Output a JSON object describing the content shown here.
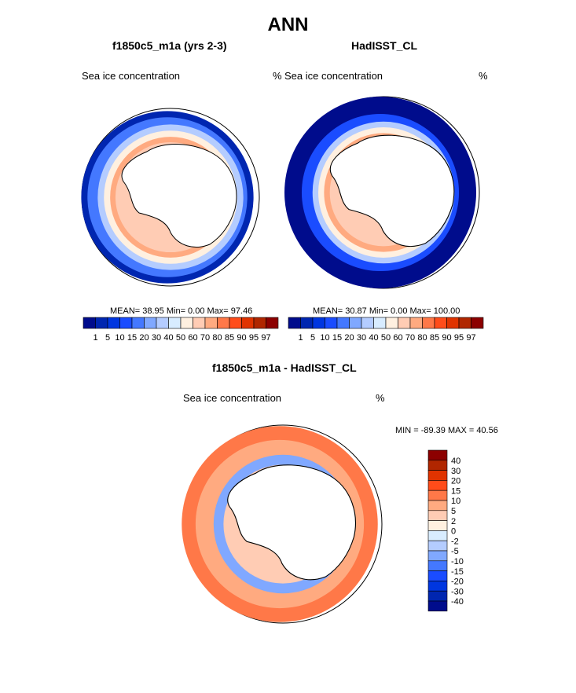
{
  "title": "ANN",
  "panels": [
    {
      "title": "f1850c5_m1a (yrs 2-3)",
      "left_label": "Sea ice concentration",
      "units": "%",
      "stats": "MEAN=  38.95  Min=   0.00  Max=  97.46"
    },
    {
      "title": "HadISST_CL",
      "left_label": "Sea ice concentration",
      "units": "%",
      "stats": "MEAN=  30.87  Min=   0.00  Max= 100.00"
    },
    {
      "title": "f1850c5_m1a - HadISST_CL",
      "left_label": "Sea ice concentration",
      "units": "%",
      "stats": "MIN = -89.39 MAX =  40.56"
    }
  ],
  "colorbar_abs": {
    "labels": [
      "1",
      "5",
      "10",
      "15",
      "20",
      "30",
      "40",
      "50",
      "60",
      "70",
      "80",
      "85",
      "90",
      "95",
      "97"
    ],
    "colors": [
      "#000c8c",
      "#0026b0",
      "#0036e0",
      "#1a4cff",
      "#4478ff",
      "#80a8ff",
      "#b4ccff",
      "#d8ecff",
      "#fff0e0",
      "#ffccb4",
      "#ffaa80",
      "#ff7848",
      "#ff4c1a",
      "#e03300",
      "#b02600",
      "#8c0000"
    ]
  },
  "colorbar_diff": {
    "labels": [
      "40",
      "30",
      "20",
      "15",
      "10",
      "5",
      "2",
      "0",
      "-2",
      "-5",
      "-10",
      "-15",
      "-20",
      "-30",
      "-40"
    ],
    "colors": [
      "#8c0000",
      "#b02600",
      "#e03300",
      "#ff4c1a",
      "#ff7848",
      "#ffaa80",
      "#ffccb4",
      "#fff0e0",
      "#d8ecff",
      "#b4ccff",
      "#80a8ff",
      "#4478ff",
      "#1a4cff",
      "#0036e0",
      "#0026b0",
      "#000c8c"
    ]
  }
}
